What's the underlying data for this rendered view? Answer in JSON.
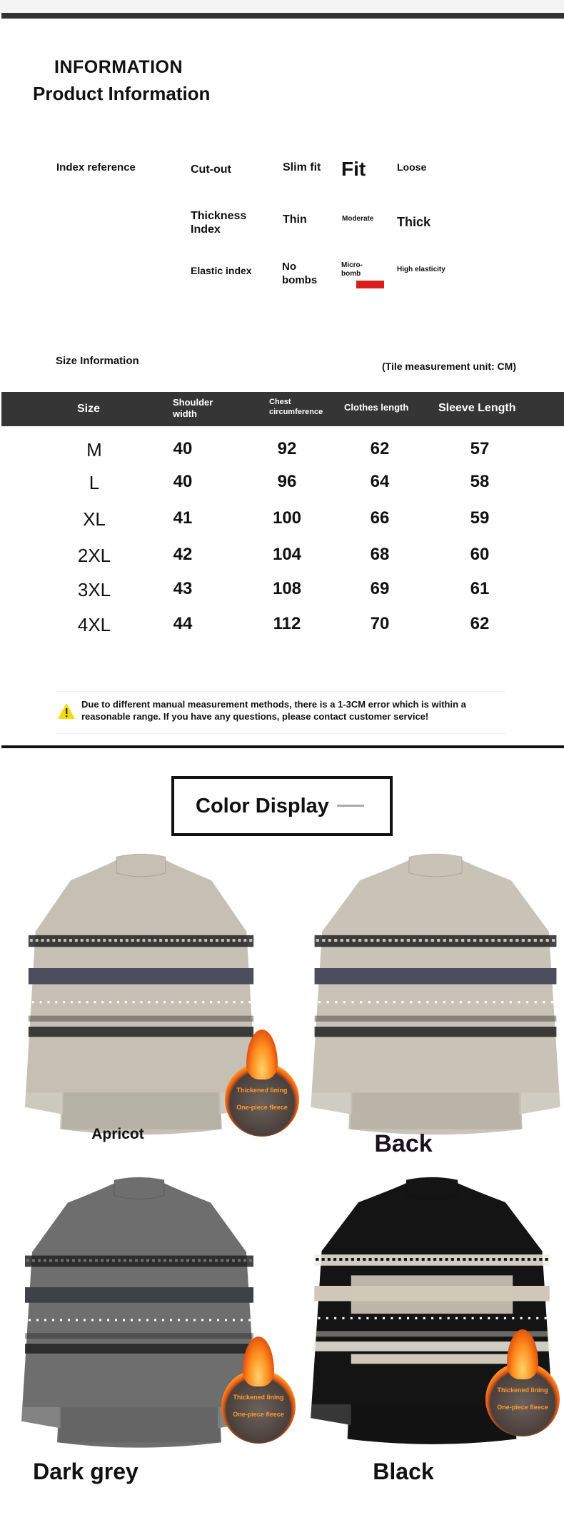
{
  "header": {
    "title": "INFORMATION",
    "subtitle": "Product Information"
  },
  "index": {
    "label": "Index reference",
    "fit": {
      "label": "Cut-out",
      "options": [
        "Slim fit",
        "Fit",
        "Loose"
      ],
      "selected": "Fit"
    },
    "thickness": {
      "label": "Thickness Index",
      "options": [
        "Thin",
        "Moderate",
        "Thick"
      ],
      "selected": "Thick"
    },
    "elastic": {
      "label": "Elastic index",
      "options": [
        "No bombs",
        "Micro-bomb",
        "High elasticity"
      ],
      "selected": "Micro-bomb",
      "marker_color": "#d91e1e"
    }
  },
  "size_info": {
    "label": "Size Information",
    "unit_note": "(Tile measurement unit: CM)",
    "columns": [
      "Size",
      "Shoulder width",
      "Chest circumference",
      "Clothes length",
      "Sleeve Length"
    ],
    "rows": [
      [
        "M",
        "40",
        "92",
        "62",
        "57"
      ],
      [
        "L",
        "40",
        "96",
        "64",
        "58"
      ],
      [
        "XL",
        "41",
        "100",
        "66",
        "59"
      ],
      [
        "2XL",
        "42",
        "104",
        "68",
        "60"
      ],
      [
        "3XL",
        "43",
        "108",
        "69",
        "61"
      ],
      [
        "4XL",
        "44",
        "112",
        "70",
        "62"
      ]
    ],
    "warning": "Due to different manual measurement methods, there is a 1-3CM error which is within a reasonable range. If you have any questions, please contact customer service!",
    "warning_icon": "warning-triangle-icon"
  },
  "colors": {
    "title": "Color Display",
    "items": [
      {
        "label": "Apricot",
        "body": "#c6c0b4",
        "stripe": "#4a4d5c",
        "badge": [
          "Thickened lining",
          "One-piece fleece"
        ]
      },
      {
        "label": "Back",
        "body": "#c9c3b7",
        "stripe": "#4a4d5c"
      },
      {
        "label": "Dark grey",
        "body": "#6e6e6e",
        "stripe": "#3f4148",
        "badge": [
          "Thickened lining",
          "One-piece fleece"
        ]
      },
      {
        "label": "Black",
        "body": "#141414",
        "stripe": "#cfc8b8",
        "badge": [
          "Thickened lining",
          "One-piece fleece"
        ]
      }
    ]
  }
}
